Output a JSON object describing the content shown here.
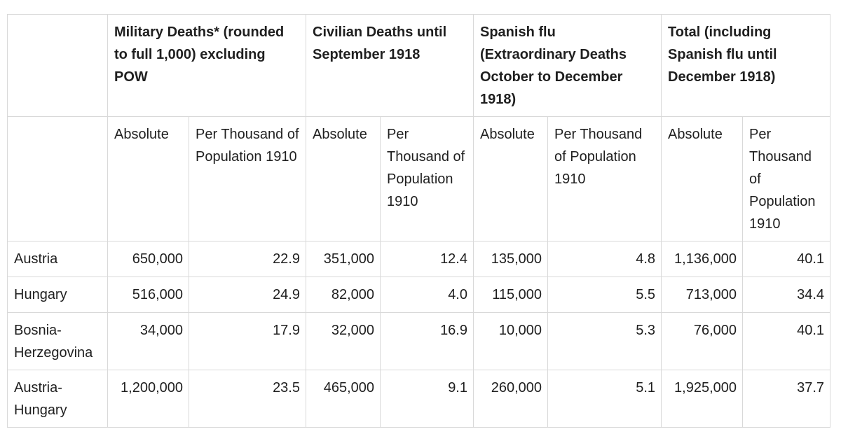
{
  "table": {
    "group_headers": [
      "Military Deaths* (rounded to full 1,000) excluding POW",
      "Civilian Deaths until September 1918",
      "Spanish flu (Extraordinary Deaths October to December 1918)",
      "Total (including Spanish flu until December 1918)"
    ],
    "sub_headers": [
      "Absolute",
      "Per Thousand of Population 1910",
      "Absolute",
      "Per Thousand of Population 1910",
      "Absolute",
      "Per Thousand of Population 1910",
      "Absolute",
      "Per Thousand of Population 1910"
    ],
    "rows": [
      {
        "name": "Austria",
        "cells": [
          "650,000",
          "22.9",
          "351,000",
          "12.4",
          "135,000",
          "4.8",
          "1,136,000",
          "40.1"
        ]
      },
      {
        "name": "Hungary",
        "cells": [
          "516,000",
          "24.9",
          "82,000",
          "4.0",
          "115,000",
          "5.5",
          "713,000",
          "34.4"
        ]
      },
      {
        "name": "Bosnia-Herzegovina",
        "cells": [
          "34,000",
          "17.9",
          "32,000",
          "16.9",
          "10,000",
          "5.3",
          "76,000",
          "40.1"
        ]
      },
      {
        "name": "Austria-Hungary",
        "cells": [
          "1,200,000",
          "23.5",
          "465,000",
          "9.1",
          "260,000",
          "5.1",
          "1,925,000",
          "37.7"
        ]
      }
    ]
  }
}
